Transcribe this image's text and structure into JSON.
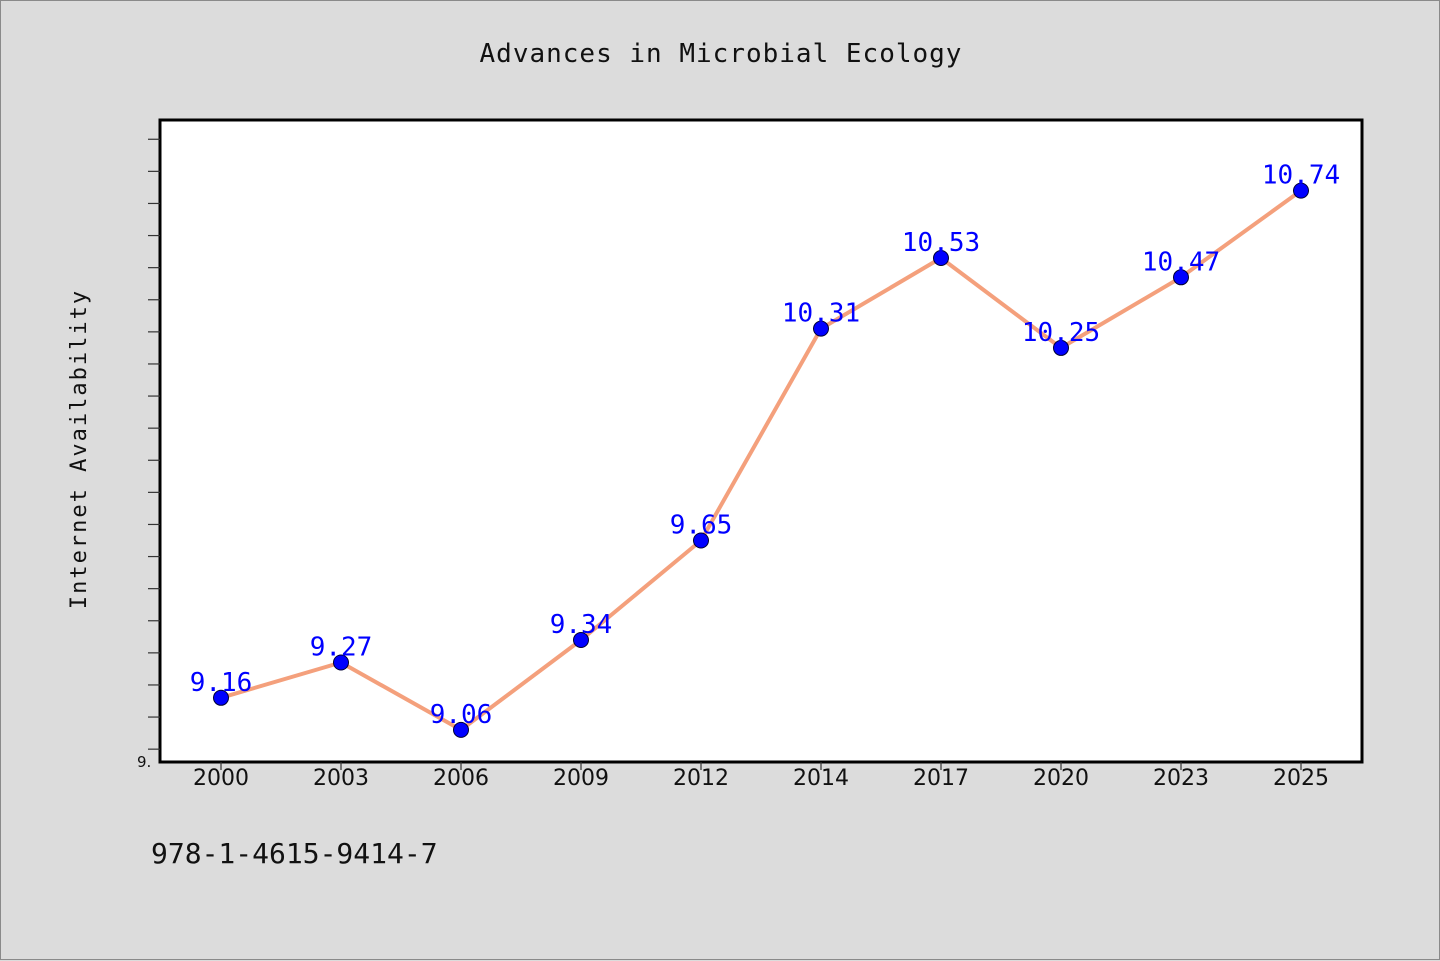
{
  "chart_data": {
    "type": "line",
    "title": "Advances in Microbial Ecology",
    "xlabel": "",
    "ylabel": "Internet Availability",
    "categories": [
      "2000",
      "2003",
      "2006",
      "2009",
      "2012",
      "2014",
      "2017",
      "2020",
      "2023",
      "2025"
    ],
    "series": [
      {
        "values": [
          9.16,
          9.27,
          9.06,
          9.34,
          9.65,
          10.31,
          10.53,
          10.25,
          10.47,
          10.74
        ],
        "labels": [
          "9.16",
          "9.27",
          "9.06",
          "9.34",
          "9.65",
          "10.31",
          "10.53",
          "10.25",
          "10.47",
          "10.74"
        ],
        "line_color": "#f4a07c",
        "marker_color": "#0000ff"
      }
    ],
    "ylim": [
      8.96,
      10.96
    ],
    "ytick_labels": [
      "9."
    ],
    "grid": false,
    "legend": "none"
  },
  "footer": {
    "isbn": "978-1-4615-9414-7"
  },
  "colors": {
    "background": "#dcdcdc",
    "plot_background": "#ffffff",
    "line": "#f4a07c",
    "marker": "#0000ff",
    "label": "#0000ff"
  }
}
